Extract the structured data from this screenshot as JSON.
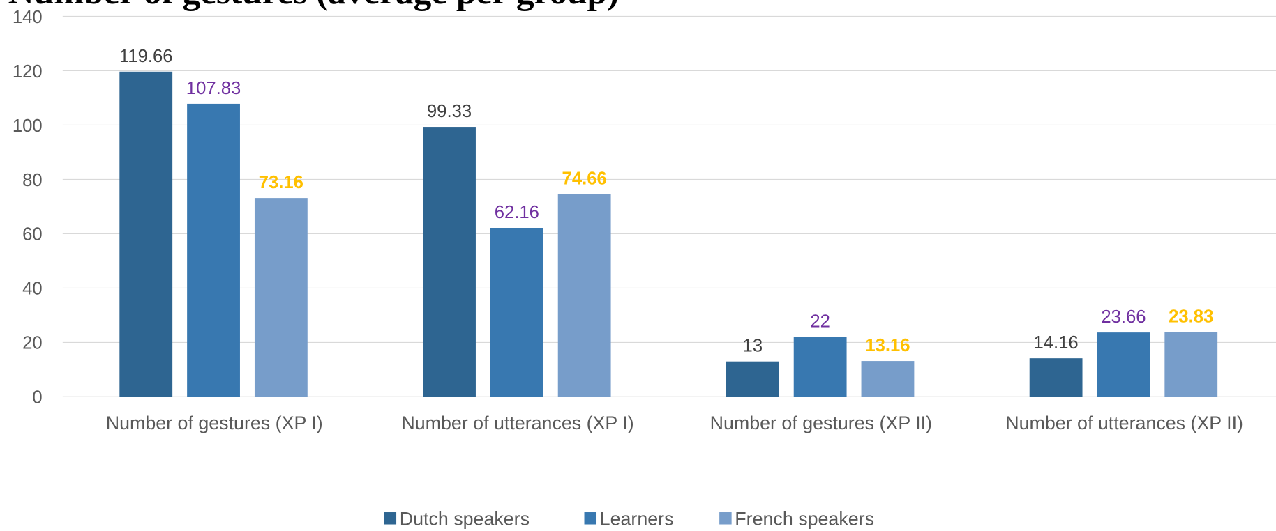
{
  "chart_data": {
    "type": "bar",
    "title": "Number of gestures (average per group)",
    "categories": [
      "Number of gestures (XP I)",
      "Number of utterances (XP I)",
      "Number of gestures (XP II)",
      "Number of utterances (XP II)"
    ],
    "series": [
      {
        "name": "Dutch speakers",
        "color": "#2e6591",
        "label_color": "#404040",
        "values": [
          119.66,
          99.33,
          13,
          14.16
        ]
      },
      {
        "name": "Learners",
        "color": "#3878b0",
        "label_color": "#7030a0",
        "values": [
          107.83,
          62.16,
          22,
          23.66
        ]
      },
      {
        "name": "French speakers",
        "color": "#779dca",
        "label_color": "#ffc000",
        "values": [
          73.16,
          74.66,
          13.16,
          23.83
        ]
      }
    ],
    "ylim": [
      0,
      140
    ],
    "yticks": [
      0,
      20,
      40,
      60,
      80,
      100,
      120,
      140
    ],
    "grid": true,
    "legend": "bottom"
  }
}
